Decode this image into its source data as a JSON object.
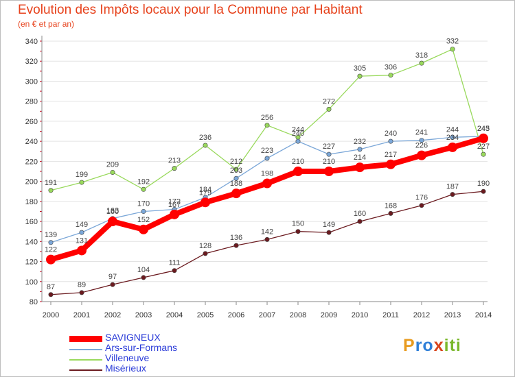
{
  "header": {
    "title": "Evolution des Impôts locaux pour la Commune par Habitant",
    "subtitle": "(en € et par an)"
  },
  "logo": {
    "text": "Proxiti",
    "letters": [
      "P",
      "r",
      "o",
      "x",
      "i",
      "t",
      "i"
    ],
    "colors": [
      "#e89b1e",
      "#2f7fd8",
      "#2f7fd8",
      "#d8441c",
      "#7ab82c",
      "#7ab82c",
      "#7ab82c"
    ]
  },
  "chart_data": {
    "type": "line",
    "categories": [
      "2000",
      "2001",
      "2002",
      "2003",
      "2004",
      "2005",
      "2006",
      "2007",
      "2008",
      "2009",
      "2010",
      "2011",
      "2012",
      "2013",
      "2014"
    ],
    "y_ticks": [
      "80",
      "100",
      "120",
      "140",
      "160",
      "180",
      "200",
      "220",
      "240",
      "260",
      "280",
      "300",
      "320",
      "340"
    ],
    "ylim": [
      80,
      340
    ],
    "grid": "horizontal",
    "legend_position": "bottom-left",
    "series": [
      {
        "name": "Misérieux",
        "color": "#6b1a1f",
        "values": [
          87,
          89,
          97,
          104,
          111,
          128,
          136,
          142,
          150,
          149,
          160,
          168,
          176,
          187,
          190
        ]
      },
      {
        "name": "Villeneuve",
        "color": "#99d95c",
        "values": [
          191,
          199,
          209,
          192,
          213,
          236,
          212,
          256,
          244,
          272,
          305,
          306,
          318,
          332,
          227
        ]
      },
      {
        "name": "Ars-sur-Formans",
        "color": "#7ba7d8",
        "values": [
          139,
          149,
          163,
          170,
          172,
          184,
          203,
          223,
          240,
          227,
          232,
          240,
          241,
          244,
          245
        ]
      },
      {
        "name": "SAVIGNEUX",
        "color": "#ff0000",
        "values": [
          122,
          131,
          160,
          152,
          167,
          179,
          188,
          198,
          210,
          210,
          214,
          217,
          226,
          234,
          243
        ]
      }
    ],
    "legend_order": [
      "SAVIGNEUX",
      "Ars-sur-Formans",
      "Villeneuve",
      "Misérieux"
    ]
  }
}
